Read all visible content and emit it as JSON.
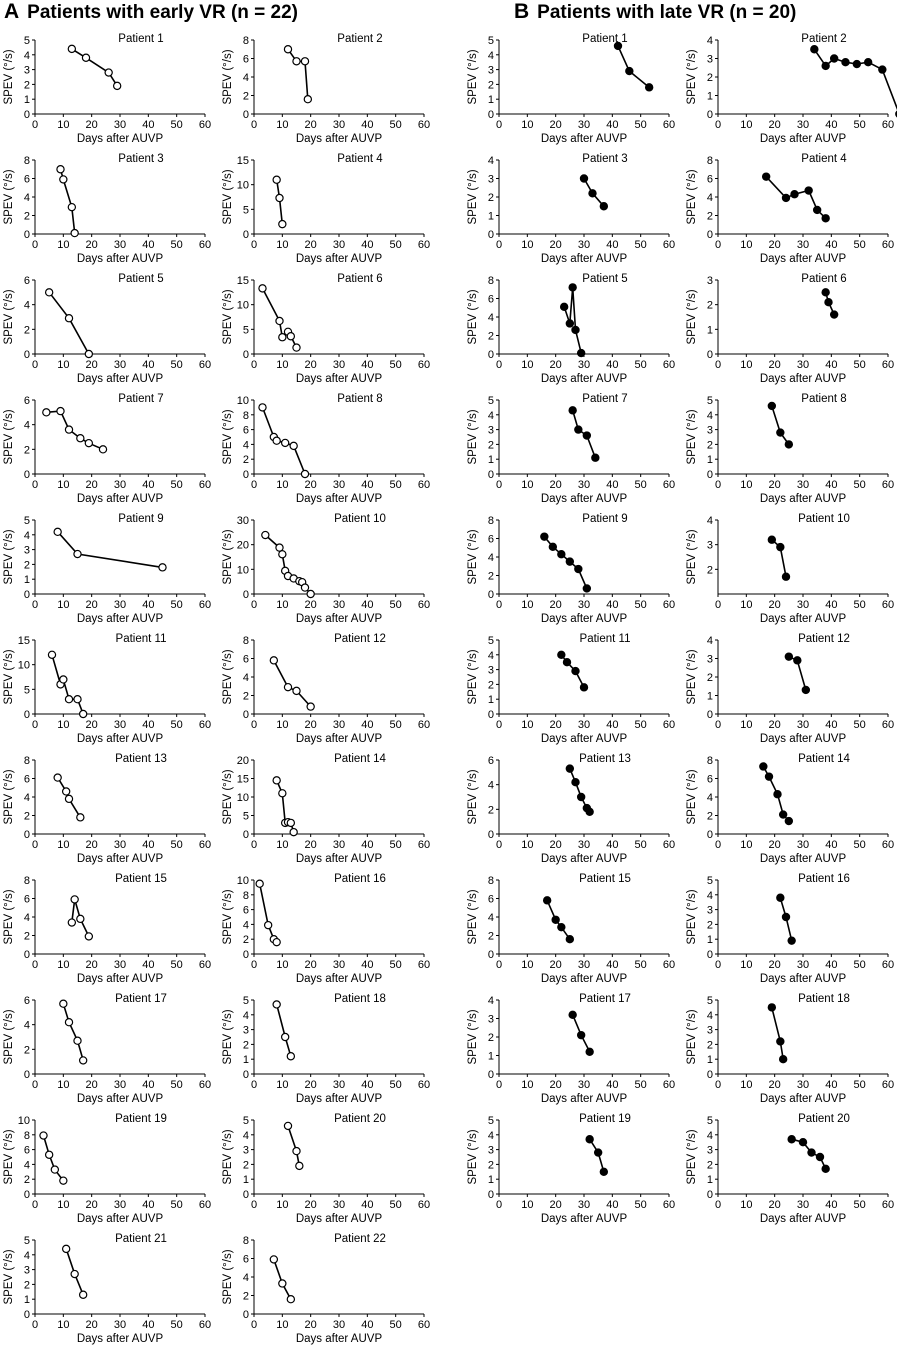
{
  "panels": [
    {
      "letter": "A",
      "title": "Patients with early VR (n = 22)",
      "marker": "open",
      "xlabel": "Days after AUVP",
      "ylabel": "SPEV (°/s)",
      "xlim": [
        0,
        60
      ],
      "xticks": [
        0,
        10,
        20,
        30,
        40,
        50,
        60
      ],
      "charts": [
        {
          "title": "Patient 1",
          "type": "line",
          "ylim": [
            0,
            5
          ],
          "yticks": [
            0,
            1,
            2,
            3,
            4,
            5
          ],
          "x": [
            13,
            18,
            26,
            29
          ],
          "y": [
            4.4,
            3.8,
            2.8,
            1.9
          ]
        },
        {
          "title": "Patient 2",
          "type": "line",
          "ylim": [
            0,
            8
          ],
          "yticks": [
            0,
            2,
            4,
            6,
            8
          ],
          "x": [
            12,
            15,
            18,
            19
          ],
          "y": [
            7.0,
            5.7,
            5.7,
            1.6
          ]
        },
        {
          "title": "Patient 3",
          "type": "line",
          "ylim": [
            0,
            8
          ],
          "yticks": [
            0,
            2,
            4,
            6,
            8
          ],
          "x": [
            9,
            10,
            13,
            14
          ],
          "y": [
            7.0,
            5.9,
            2.9,
            0.1
          ]
        },
        {
          "title": "Patient 4",
          "type": "line",
          "ylim": [
            0,
            15
          ],
          "yticks": [
            0,
            5,
            10,
            15
          ],
          "x": [
            8,
            9,
            10
          ],
          "y": [
            11.0,
            7.3,
            2.0
          ]
        },
        {
          "title": "Patient 5",
          "type": "line",
          "ylim": [
            0,
            6
          ],
          "yticks": [
            0,
            2,
            4,
            6
          ],
          "x": [
            5,
            12,
            19
          ],
          "y": [
            5.0,
            2.9,
            0.0
          ]
        },
        {
          "title": "Patient 6",
          "type": "line",
          "ylim": [
            0,
            15
          ],
          "yticks": [
            0,
            5,
            10,
            15
          ],
          "x": [
            3,
            9,
            10,
            12,
            13,
            15
          ],
          "y": [
            13.3,
            6.7,
            3.4,
            4.5,
            3.6,
            1.3
          ]
        },
        {
          "title": "Patient 7",
          "type": "line",
          "ylim": [
            0,
            6
          ],
          "yticks": [
            0,
            2,
            4,
            6
          ],
          "x": [
            4,
            9,
            12,
            16,
            19,
            24
          ],
          "y": [
            5.0,
            5.1,
            3.6,
            2.9,
            2.5,
            2.0
          ]
        },
        {
          "title": "Patient 8",
          "type": "line",
          "ylim": [
            0,
            10
          ],
          "yticks": [
            0,
            2,
            4,
            6,
            8,
            10
          ],
          "x": [
            3,
            7,
            8,
            11,
            14,
            18
          ],
          "y": [
            9.0,
            5.0,
            4.5,
            4.2,
            3.8,
            0.0
          ]
        },
        {
          "title": "Patient 9",
          "type": "line",
          "ylim": [
            0,
            5
          ],
          "yticks": [
            0,
            1,
            2,
            3,
            4,
            5
          ],
          "x": [
            8,
            15,
            45
          ],
          "y": [
            4.2,
            2.7,
            1.8
          ]
        },
        {
          "title": "Patient 10",
          "type": "line",
          "ylim": [
            0,
            30
          ],
          "yticks": [
            0,
            10,
            20,
            30
          ],
          "x": [
            4,
            9,
            10,
            11,
            12,
            14,
            16,
            17,
            18,
            20
          ],
          "y": [
            23.9,
            18.8,
            16.1,
            9.4,
            7.3,
            6.3,
            5.2,
            4.8,
            2.6,
            0.0
          ]
        },
        {
          "title": "Patient 11",
          "type": "line",
          "ylim": [
            0,
            15
          ],
          "yticks": [
            0,
            5,
            10,
            15
          ],
          "x": [
            6,
            9,
            10,
            12,
            15,
            17
          ],
          "y": [
            12.0,
            6.0,
            7.0,
            3.0,
            3.0,
            0.0
          ]
        },
        {
          "title": "Patient 12",
          "type": "line",
          "ylim": [
            0,
            8
          ],
          "yticks": [
            0,
            2,
            4,
            6,
            8
          ],
          "x": [
            7,
            12,
            15,
            20
          ],
          "y": [
            5.8,
            2.9,
            2.5,
            0.8
          ]
        },
        {
          "title": "Patient 13",
          "type": "line",
          "ylim": [
            0,
            8
          ],
          "yticks": [
            0,
            2,
            4,
            6,
            8
          ],
          "x": [
            8,
            11,
            12,
            16
          ],
          "y": [
            6.1,
            4.6,
            3.8,
            1.8
          ]
        },
        {
          "title": "Patient 14",
          "type": "line",
          "ylim": [
            0,
            20
          ],
          "yticks": [
            0,
            5,
            10,
            15,
            20
          ],
          "x": [
            8,
            10,
            11,
            12,
            13,
            14
          ],
          "y": [
            14.5,
            11.0,
            3.0,
            3.2,
            3.0,
            0.5
          ]
        },
        {
          "title": "Patient 15",
          "type": "line",
          "ylim": [
            0,
            8
          ],
          "yticks": [
            0,
            2,
            4,
            6,
            8
          ],
          "x": [
            13,
            14,
            16,
            19
          ],
          "y": [
            3.4,
            5.9,
            3.8,
            1.9
          ]
        },
        {
          "title": "Patient 16",
          "type": "line",
          "ylim": [
            0,
            10
          ],
          "yticks": [
            0,
            2,
            4,
            6,
            8,
            10
          ],
          "x": [
            2,
            5,
            7,
            8
          ],
          "y": [
            9.5,
            3.9,
            2.0,
            1.6
          ]
        },
        {
          "title": "Patient 17",
          "type": "line",
          "ylim": [
            0,
            6
          ],
          "yticks": [
            0,
            2,
            4,
            6
          ],
          "x": [
            10,
            12,
            15,
            17
          ],
          "y": [
            5.7,
            4.2,
            2.7,
            1.1
          ]
        },
        {
          "title": "Patient 18",
          "type": "line",
          "ylim": [
            0,
            5
          ],
          "yticks": [
            0,
            1,
            2,
            3,
            4,
            5
          ],
          "x": [
            8,
            11,
            13
          ],
          "y": [
            4.7,
            2.5,
            1.2
          ]
        },
        {
          "title": "Patient 19",
          "type": "line",
          "ylim": [
            0,
            10
          ],
          "yticks": [
            0,
            2,
            4,
            6,
            8,
            10
          ],
          "x": [
            3,
            5,
            7,
            10
          ],
          "y": [
            7.9,
            5.3,
            3.3,
            1.8
          ]
        },
        {
          "title": "Patient 20",
          "type": "line",
          "ylim": [
            0,
            5
          ],
          "yticks": [
            0,
            1,
            2,
            3,
            4,
            5
          ],
          "x": [
            12,
            15,
            16
          ],
          "y": [
            4.6,
            2.9,
            1.9
          ]
        },
        {
          "title": "Patient 21",
          "type": "line",
          "ylim": [
            0,
            5
          ],
          "yticks": [
            0,
            1,
            2,
            3,
            4,
            5
          ],
          "x": [
            11,
            14,
            17
          ],
          "y": [
            4.4,
            2.7,
            1.3
          ]
        },
        {
          "title": "Patient 22",
          "type": "line",
          "ylim": [
            0,
            8
          ],
          "yticks": [
            0,
            2,
            4,
            6,
            8
          ],
          "x": [
            7,
            10,
            13
          ],
          "y": [
            5.9,
            3.3,
            1.6
          ]
        }
      ]
    },
    {
      "letter": "B",
      "title": "Patients with late VR (n = 20)",
      "marker": "filled",
      "xlabel": "Days after AUVP",
      "ylabel": "SPEV (°/s)",
      "xlim": [
        0,
        60
      ],
      "xticks": [
        0,
        10,
        20,
        30,
        40,
        50,
        60
      ],
      "charts": [
        {
          "title": "Patient 1",
          "type": "line",
          "ylim": [
            0,
            5
          ],
          "yticks": [
            0,
            1,
            2,
            3,
            4,
            5
          ],
          "x": [
            42,
            46,
            53
          ],
          "y": [
            4.6,
            2.9,
            1.8
          ]
        },
        {
          "title": "Patient 2",
          "type": "line",
          "ylim": [
            0,
            4
          ],
          "yticks": [
            0,
            1,
            2,
            3,
            4
          ],
          "x": [
            34,
            38,
            41,
            45,
            49,
            53,
            58,
            64
          ],
          "y": [
            3.5,
            2.6,
            3.0,
            2.8,
            2.7,
            2.8,
            2.4,
            0.0
          ]
        },
        {
          "title": "Patient 3",
          "type": "line",
          "ylim": [
            0,
            4
          ],
          "yticks": [
            0,
            1,
            2,
            3,
            4
          ],
          "x": [
            30,
            33,
            37
          ],
          "y": [
            3.0,
            2.2,
            1.5
          ]
        },
        {
          "title": "Patient 4",
          "type": "line",
          "ylim": [
            0,
            8
          ],
          "yticks": [
            0,
            2,
            4,
            6,
            8
          ],
          "x": [
            17,
            24,
            27,
            32,
            35,
            38
          ],
          "y": [
            6.2,
            3.9,
            4.3,
            4.7,
            2.6,
            1.7
          ]
        },
        {
          "title": "Patient 5",
          "type": "line",
          "ylim": [
            0,
            8
          ],
          "yticks": [
            0,
            2,
            4,
            6,
            8
          ],
          "x": [
            23,
            25,
            26,
            27,
            29
          ],
          "y": [
            5.1,
            3.3,
            7.2,
            2.6,
            0.1
          ]
        },
        {
          "title": "Patient 6",
          "type": "line",
          "ylim": [
            0,
            3
          ],
          "yticks": [
            0,
            1,
            2,
            3
          ],
          "x": [
            38,
            39,
            41
          ],
          "y": [
            2.5,
            2.1,
            1.6
          ]
        },
        {
          "title": "Patient 7",
          "type": "line",
          "ylim": [
            0,
            5
          ],
          "yticks": [
            0,
            1,
            2,
            3,
            4,
            5
          ],
          "x": [
            26,
            28,
            31,
            34
          ],
          "y": [
            4.3,
            3.0,
            2.6,
            1.1
          ]
        },
        {
          "title": "Patient 8",
          "type": "line",
          "ylim": [
            0,
            5
          ],
          "yticks": [
            0,
            1,
            2,
            3,
            4,
            5
          ],
          "x": [
            19,
            22,
            25
          ],
          "y": [
            4.6,
            2.8,
            2.0
          ]
        },
        {
          "title": "Patient 9",
          "type": "line",
          "ylim": [
            0,
            8
          ],
          "yticks": [
            0,
            2,
            4,
            6,
            8
          ],
          "x": [
            16,
            19,
            22,
            25,
            28,
            31
          ],
          "y": [
            6.2,
            5.1,
            4.3,
            3.5,
            2.7,
            0.6
          ]
        },
        {
          "title": "Patient 10",
          "type": "line",
          "ylim": [
            1,
            4
          ],
          "yticks": [
            2,
            3,
            4
          ],
          "x": [
            19,
            22,
            24
          ],
          "y": [
            3.2,
            2.9,
            1.7
          ]
        },
        {
          "title": "Patient 11",
          "type": "line",
          "ylim": [
            0,
            5
          ],
          "yticks": [
            0,
            1,
            2,
            3,
            4,
            5
          ],
          "x": [
            22,
            24,
            27,
            30
          ],
          "y": [
            4.0,
            3.5,
            2.9,
            1.8
          ]
        },
        {
          "title": "Patient 12",
          "type": "line",
          "ylim": [
            0,
            4
          ],
          "yticks": [
            0,
            1,
            2,
            3,
            4
          ],
          "x": [
            25,
            28,
            31
          ],
          "y": [
            3.1,
            2.9,
            1.3
          ]
        },
        {
          "title": "Patient 13",
          "type": "line",
          "ylim": [
            0,
            6
          ],
          "yticks": [
            0,
            2,
            4,
            6
          ],
          "x": [
            25,
            27,
            29,
            31,
            32
          ],
          "y": [
            5.3,
            4.2,
            3.0,
            2.1,
            1.8
          ]
        },
        {
          "title": "Patient 14",
          "type": "line",
          "ylim": [
            0,
            8
          ],
          "yticks": [
            0,
            2,
            4,
            6,
            8
          ],
          "x": [
            16,
            18,
            21,
            23,
            25
          ],
          "y": [
            7.3,
            6.2,
            4.3,
            2.1,
            1.4
          ]
        },
        {
          "title": "Patient 15",
          "type": "line",
          "ylim": [
            0,
            8
          ],
          "yticks": [
            0,
            2,
            4,
            6,
            8
          ],
          "x": [
            17,
            20,
            22,
            25
          ],
          "y": [
            5.8,
            3.7,
            2.9,
            1.6
          ]
        },
        {
          "title": "Patient 16",
          "type": "line",
          "ylim": [
            0,
            5
          ],
          "yticks": [
            0,
            1,
            2,
            3,
            4,
            5
          ],
          "x": [
            22,
            24,
            26
          ],
          "y": [
            3.8,
            2.5,
            0.9
          ]
        },
        {
          "title": "Patient 17",
          "type": "line",
          "ylim": [
            0,
            4
          ],
          "yticks": [
            0,
            1,
            2,
            3,
            4
          ],
          "x": [
            26,
            29,
            32
          ],
          "y": [
            3.2,
            2.1,
            1.2
          ]
        },
        {
          "title": "Patient 18",
          "type": "line",
          "ylim": [
            0,
            5
          ],
          "yticks": [
            0,
            1,
            2,
            3,
            4,
            5
          ],
          "x": [
            19,
            22,
            23
          ],
          "y": [
            4.5,
            2.2,
            1.0
          ]
        },
        {
          "title": "Patient 19",
          "type": "line",
          "ylim": [
            0,
            5
          ],
          "yticks": [
            0,
            1,
            2,
            3,
            4,
            5
          ],
          "x": [
            32,
            35,
            37
          ],
          "y": [
            3.7,
            2.8,
            1.5
          ]
        },
        {
          "title": "Patient 20",
          "type": "line",
          "ylim": [
            0,
            5
          ],
          "yticks": [
            0,
            1,
            2,
            3,
            4,
            5
          ],
          "x": [
            26,
            30,
            33,
            36,
            38
          ],
          "y": [
            3.7,
            3.5,
            2.8,
            2.5,
            1.7
          ]
        }
      ]
    }
  ]
}
